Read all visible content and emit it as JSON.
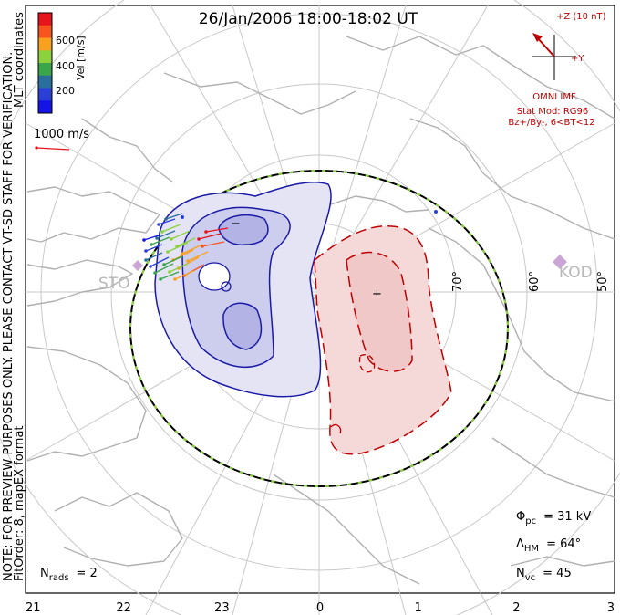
{
  "title": "26/Jan/2006 18:00-18:02 UT",
  "side_note_line1": "NOTE: FOR PREVIEW PURPOSES ONLY. PLEASE CONTACT VT-SD STAFF FOR VERIFICATION.",
  "side_note_line2": "FitOrder: 8, mapEX format",
  "coordinates_label": "MLT coordinates",
  "colorbar": {
    "label": "Vel [m/s]",
    "ticks": [
      "600",
      "400",
      "200"
    ],
    "colors": [
      "#e8141c",
      "#f7541e",
      "#f9a11e",
      "#8cd23c",
      "#3aa54a",
      "#2a6e9e",
      "#2b3fd6",
      "#1414e6"
    ]
  },
  "vector_scale_label": "1000 m/s",
  "imf": {
    "z_label": "+Z (10 nT)",
    "y_label": "+Y",
    "source": "OMNI IMF",
    "model": "Stat Mod: RG96",
    "condition": "Bz+/By-, 6<BT<12"
  },
  "latitude_labels": [
    "70°",
    "60°",
    "50°"
  ],
  "stations": [
    "STO",
    "KOD"
  ],
  "potential_minus": "−",
  "potential_plus": "+",
  "stats": {
    "phi_label": "Φ",
    "phi_sub": "pc",
    "phi_value": "= 31 kV",
    "lambda_label": "Λ",
    "lambda_sub": "HM",
    "lambda_value": "= 64°",
    "nvc_label": "N",
    "nvc_sub": "vc",
    "nvc_value": "= 45",
    "nrads_label": "N",
    "nrads_sub": "rads",
    "nrads_value": "= 2"
  },
  "mlt_ticks": [
    "21",
    "22",
    "23",
    "0",
    "1",
    "2",
    "3"
  ]
}
